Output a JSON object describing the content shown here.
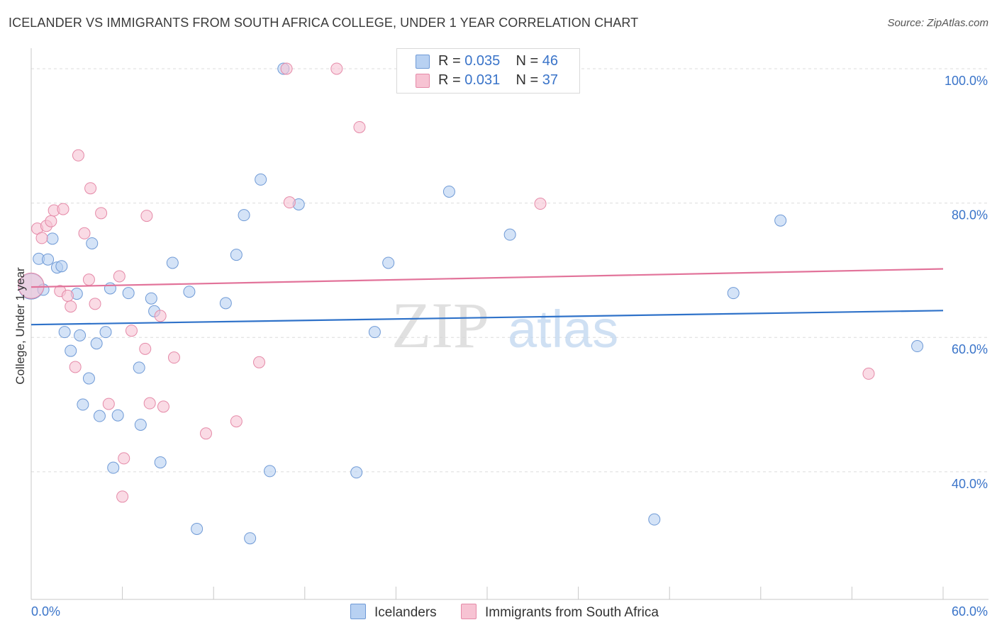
{
  "title": "ICELANDER VS IMMIGRANTS FROM SOUTH AFRICA COLLEGE, UNDER 1 YEAR CORRELATION CHART",
  "source": "Source: ZipAtlas.com",
  "watermark": {
    "zip": "ZIP",
    "atlas": "atlas"
  },
  "legend": {
    "series1": {
      "r_label": "R =",
      "r_value": "0.035",
      "n_label": "N =",
      "n_value": "46"
    },
    "series2": {
      "r_label": "R =",
      "r_value": "0.031",
      "n_label": "N =",
      "n_value": "37"
    }
  },
  "bottom_legend": {
    "series1": "Icelanders",
    "series2": "Immigrants from South Africa"
  },
  "colors": {
    "series1_fill": "#b8d1f2",
    "series1_stroke": "#6f9ad6",
    "series1_line": "#2f72c9",
    "series2_fill": "#f7c3d3",
    "series2_stroke": "#e58aa8",
    "series2_line": "#e2739a",
    "tick_label": "#3a74c9",
    "grid": "#dcdcdc"
  },
  "chart_data": {
    "type": "scatter",
    "title": "ICELANDER VS IMMIGRANTS FROM SOUTH AFRICA COLLEGE, UNDER 1 YEAR CORRELATION CHART",
    "xlabel": "",
    "ylabel": "College, Under 1 year",
    "xlim": [
      0,
      60
    ],
    "ylim": [
      21,
      102
    ],
    "x_tick_labels": [
      "0.0%",
      "60.0%"
    ],
    "y_ticks": [
      40,
      60,
      80,
      100
    ],
    "y_tick_labels": [
      "40.0%",
      "60.0%",
      "80.0%",
      "100.0%"
    ],
    "grid": true,
    "series": [
      {
        "name": "Icelanders",
        "r": 0.035,
        "n": 46,
        "trend": {
          "x": [
            0,
            60
          ],
          "y": [
            61.9,
            64.0
          ]
        },
        "points": [
          {
            "x": 0.0,
            "y": 67.6,
            "big": true
          },
          {
            "x": 0.5,
            "y": 71.7
          },
          {
            "x": 0.8,
            "y": 67.1
          },
          {
            "x": 1.1,
            "y": 71.6
          },
          {
            "x": 1.4,
            "y": 74.7
          },
          {
            "x": 1.7,
            "y": 70.4
          },
          {
            "x": 2.0,
            "y": 70.6
          },
          {
            "x": 2.2,
            "y": 60.8
          },
          {
            "x": 2.6,
            "y": 58.0
          },
          {
            "x": 3.0,
            "y": 66.5
          },
          {
            "x": 3.2,
            "y": 60.3
          },
          {
            "x": 3.4,
            "y": 50.0
          },
          {
            "x": 3.8,
            "y": 53.9
          },
          {
            "x": 4.0,
            "y": 74.0
          },
          {
            "x": 4.3,
            "y": 59.1
          },
          {
            "x": 4.5,
            "y": 48.3
          },
          {
            "x": 4.9,
            "y": 60.8
          },
          {
            "x": 5.2,
            "y": 67.3
          },
          {
            "x": 5.4,
            "y": 40.6
          },
          {
            "x": 5.7,
            "y": 48.4
          },
          {
            "x": 6.4,
            "y": 66.6
          },
          {
            "x": 7.1,
            "y": 55.5
          },
          {
            "x": 7.2,
            "y": 47.0
          },
          {
            "x": 7.9,
            "y": 65.8
          },
          {
            "x": 8.1,
            "y": 63.9
          },
          {
            "x": 8.5,
            "y": 41.4
          },
          {
            "x": 9.3,
            "y": 71.1
          },
          {
            "x": 10.4,
            "y": 66.8
          },
          {
            "x": 10.9,
            "y": 31.5
          },
          {
            "x": 12.8,
            "y": 65.1
          },
          {
            "x": 13.5,
            "y": 72.3
          },
          {
            "x": 14.0,
            "y": 78.2
          },
          {
            "x": 14.4,
            "y": 30.1
          },
          {
            "x": 15.1,
            "y": 83.5
          },
          {
            "x": 15.7,
            "y": 40.1
          },
          {
            "x": 16.6,
            "y": 100.0
          },
          {
            "x": 17.6,
            "y": 79.8
          },
          {
            "x": 21.4,
            "y": 39.9
          },
          {
            "x": 22.6,
            "y": 60.8
          },
          {
            "x": 23.5,
            "y": 71.1
          },
          {
            "x": 27.5,
            "y": 81.7
          },
          {
            "x": 31.5,
            "y": 75.3
          },
          {
            "x": 41.0,
            "y": 32.9
          },
          {
            "x": 46.2,
            "y": 66.6
          },
          {
            "x": 49.3,
            "y": 77.4
          },
          {
            "x": 58.3,
            "y": 58.7
          }
        ]
      },
      {
        "name": "Immigrants from South Africa",
        "r": 0.031,
        "n": 37,
        "trend": {
          "x": [
            0,
            60
          ],
          "y": [
            67.5,
            70.2
          ]
        },
        "points": [
          {
            "x": 0.0,
            "y": 67.7,
            "big": true
          },
          {
            "x": 0.4,
            "y": 76.2
          },
          {
            "x": 0.7,
            "y": 74.8
          },
          {
            "x": 1.0,
            "y": 76.6
          },
          {
            "x": 1.3,
            "y": 77.3
          },
          {
            "x": 1.5,
            "y": 78.9
          },
          {
            "x": 1.9,
            "y": 66.9
          },
          {
            "x": 2.1,
            "y": 79.1
          },
          {
            "x": 2.4,
            "y": 66.2
          },
          {
            "x": 2.6,
            "y": 64.6
          },
          {
            "x": 2.9,
            "y": 55.6
          },
          {
            "x": 3.1,
            "y": 87.1
          },
          {
            "x": 3.5,
            "y": 75.5
          },
          {
            "x": 3.8,
            "y": 68.6
          },
          {
            "x": 3.9,
            "y": 82.2
          },
          {
            "x": 4.2,
            "y": 65.0
          },
          {
            "x": 4.6,
            "y": 78.5
          },
          {
            "x": 5.1,
            "y": 50.1
          },
          {
            "x": 5.8,
            "y": 69.1
          },
          {
            "x": 6.0,
            "y": 36.3
          },
          {
            "x": 6.1,
            "y": 42.0
          },
          {
            "x": 6.6,
            "y": 61.0
          },
          {
            "x": 7.5,
            "y": 58.3
          },
          {
            "x": 7.6,
            "y": 78.1
          },
          {
            "x": 7.8,
            "y": 50.2
          },
          {
            "x": 8.5,
            "y": 63.2
          },
          {
            "x": 8.7,
            "y": 49.7
          },
          {
            "x": 9.4,
            "y": 57.0
          },
          {
            "x": 11.5,
            "y": 45.7
          },
          {
            "x": 13.5,
            "y": 47.5
          },
          {
            "x": 15.0,
            "y": 56.3
          },
          {
            "x": 16.8,
            "y": 100.0
          },
          {
            "x": 17.0,
            "y": 80.1
          },
          {
            "x": 20.1,
            "y": 100.0
          },
          {
            "x": 21.6,
            "y": 91.3
          },
          {
            "x": 33.5,
            "y": 79.9
          },
          {
            "x": 55.1,
            "y": 54.6
          }
        ]
      }
    ]
  }
}
